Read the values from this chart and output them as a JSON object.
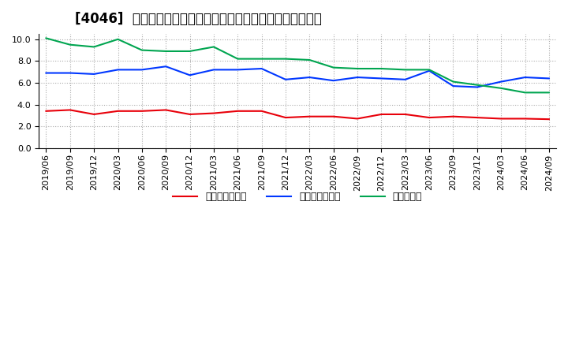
{
  "title": "[4046]  売上債権回転率、買入債務回転率、在庫回転率の推移",
  "x_labels": [
    "2019/06",
    "2019/09",
    "2019/12",
    "2020/03",
    "2020/06",
    "2020/09",
    "2020/12",
    "2021/03",
    "2021/06",
    "2021/09",
    "2021/12",
    "2022/03",
    "2022/06",
    "2022/09",
    "2022/12",
    "2023/03",
    "2023/06",
    "2023/09",
    "2023/12",
    "2024/03",
    "2024/06",
    "2024/09"
  ],
  "receivables_turnover": [
    3.4,
    3.5,
    3.1,
    3.4,
    3.4,
    3.5,
    3.1,
    3.2,
    3.4,
    3.4,
    2.8,
    2.9,
    2.9,
    2.7,
    3.1,
    3.1,
    2.8,
    2.9,
    2.8,
    2.7,
    2.7,
    2.65
  ],
  "payables_turnover": [
    6.9,
    6.9,
    6.8,
    7.2,
    7.2,
    7.5,
    6.7,
    7.2,
    7.2,
    7.3,
    6.3,
    6.5,
    6.2,
    6.5,
    6.4,
    6.3,
    7.1,
    5.7,
    5.6,
    6.1,
    6.5,
    6.4
  ],
  "inventory_turnover": [
    10.1,
    9.5,
    9.3,
    10.0,
    9.0,
    8.9,
    8.9,
    9.3,
    8.2,
    8.2,
    8.2,
    8.1,
    7.4,
    7.3,
    7.3,
    7.2,
    7.2,
    6.1,
    5.8,
    5.5,
    5.1,
    5.1
  ],
  "line_color_red": "#e8000a",
  "line_color_blue": "#0037ff",
  "line_color_green": "#00a550",
  "background_color": "#ffffff",
  "grid_color": "#aaaaaa",
  "ylim": [
    0.0,
    10.5
  ],
  "yticks": [
    0.0,
    2.0,
    4.0,
    6.0,
    8.0,
    10.0
  ],
  "legend_labels": [
    "売上債権回転率",
    "買入債務回転率",
    "在庫回転率"
  ],
  "title_fontsize": 12,
  "axis_fontsize": 8,
  "legend_fontsize": 9
}
